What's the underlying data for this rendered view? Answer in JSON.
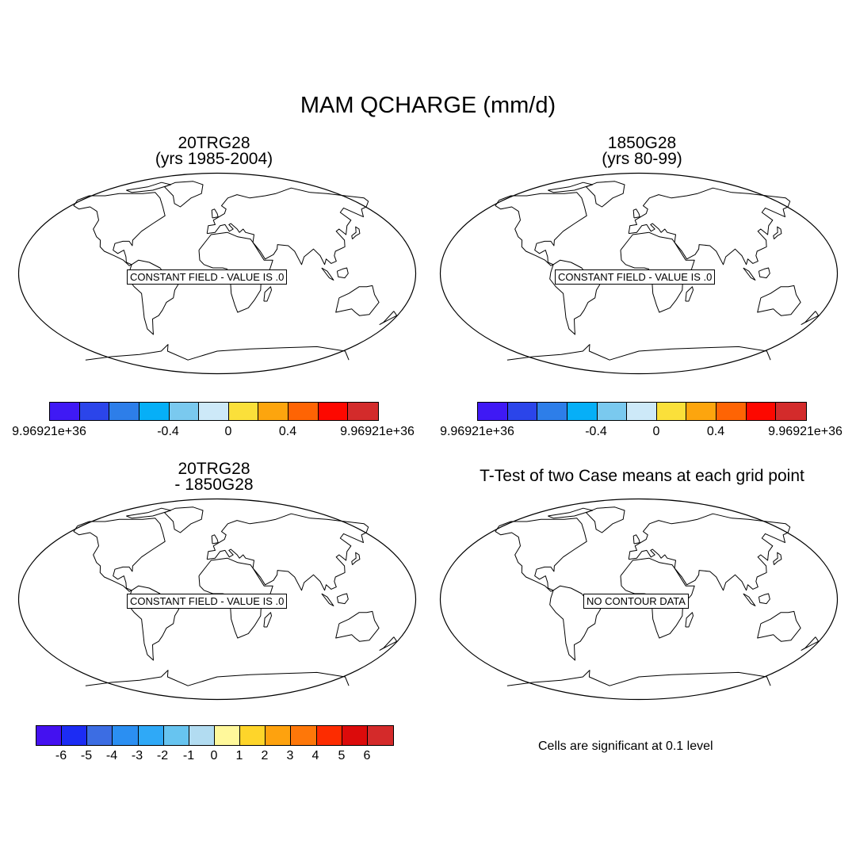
{
  "main_title": "MAM QCHARGE (mm/d)",
  "panels": [
    {
      "title_line1": "20TRG28",
      "title_line2": "(yrs 1985-2004)",
      "message": "CONSTANT FIELD - VALUE IS .0"
    },
    {
      "title_line1": "1850G28",
      "title_line2": "(yrs 80-99)",
      "message": "CONSTANT FIELD - VALUE IS .0"
    },
    {
      "title_line1": "20TRG28",
      "title_line2": "- 1850G28",
      "message": "CONSTANT FIELD - VALUE IS .0"
    },
    {
      "title_line1": "T-Test of two Case means at each grid point",
      "title_line2": "",
      "message": "NO CONTOUR DATA"
    }
  ],
  "colorbar_top": {
    "colors": [
      "#3f19f5",
      "#2b45ea",
      "#2d7ee9",
      "#06aff7",
      "#7ac9ef",
      "#cde9f8",
      "#fbe03a",
      "#fda50e",
      "#fe6404",
      "#fd0800",
      "#d32b2b"
    ],
    "labels": [
      "9.96921e+36",
      "-0.4",
      "0",
      "0.4",
      "9.96921e+36"
    ]
  },
  "colorbar_bottom": {
    "colors": [
      "#4411f0",
      "#1c2cf4",
      "#3c6de3",
      "#2b8ff2",
      "#2fa9f7",
      "#67c4f0",
      "#b2dcf1",
      "#fff89b",
      "#fed52a",
      "#fea20e",
      "#fe7709",
      "#fd2c00",
      "#dc0b0b",
      "#d42a2a"
    ],
    "labels": [
      "-6",
      "-5",
      "-4",
      "-3",
      "-2",
      "-1",
      "0",
      "1",
      "2",
      "3",
      "4",
      "5",
      "6"
    ]
  },
  "significance_note": "Cells are significant at 0.1 level"
}
